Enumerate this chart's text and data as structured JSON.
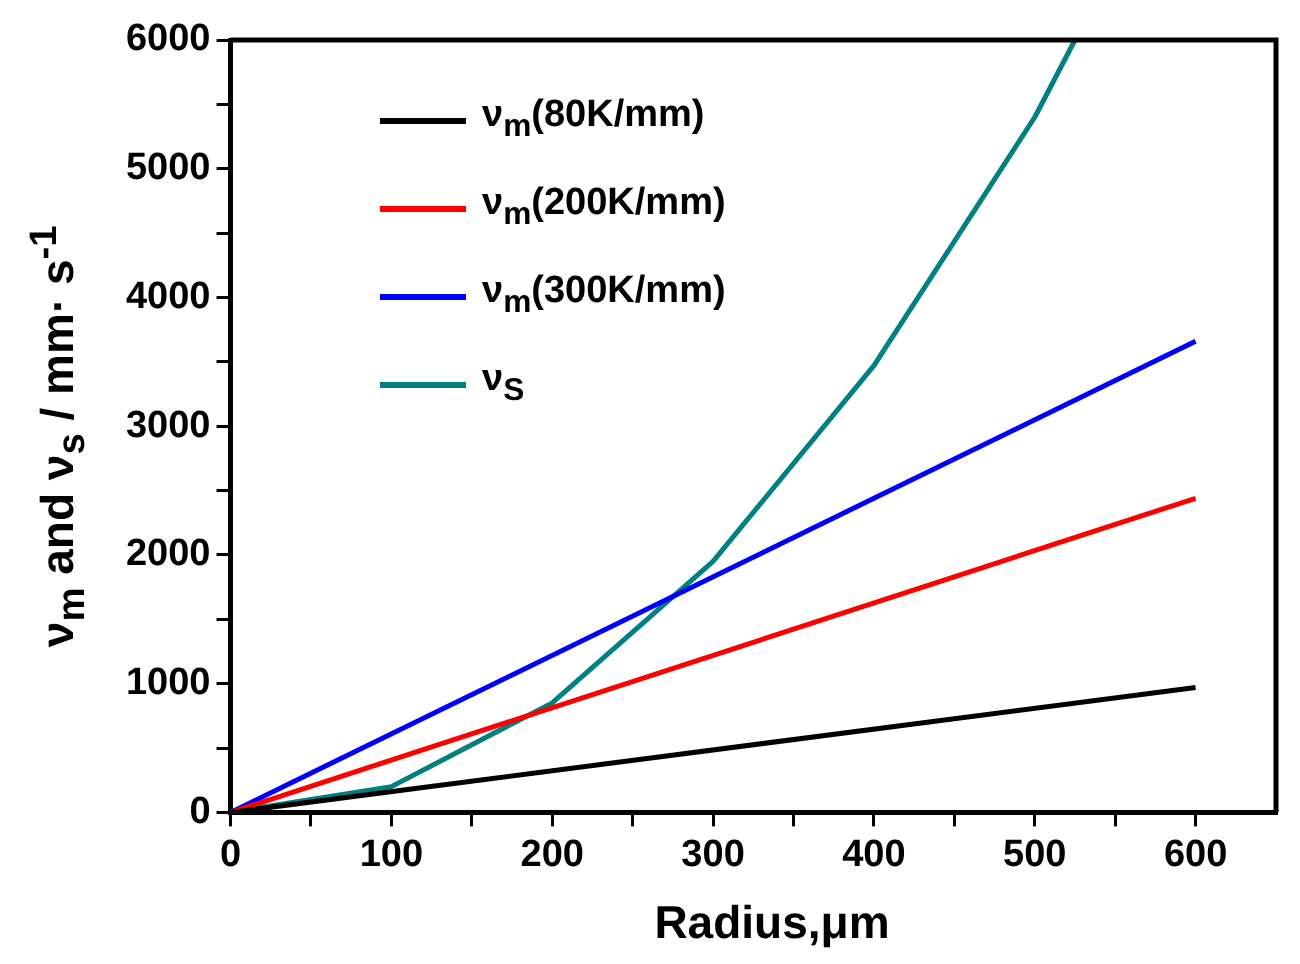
{
  "chart_data": {
    "type": "line",
    "xlabel": "Radius,μm",
    "ylabel": "ν$_{m}$ and ν$_{s}$ / mm· s$^{-1}$",
    "series": [
      {
        "name": "ν$_{m}$(80K/mm)",
        "color": "#000000",
        "x": [
          0,
          600
        ],
        "values": [
          0,
          970
        ]
      },
      {
        "name": "ν$_{m}$(200K/mm)",
        "color": "#ff0000",
        "x": [
          0,
          600
        ],
        "values": [
          0,
          2440
        ]
      },
      {
        "name": "ν$_{m}$(300K/mm)",
        "color": "#0000ff",
        "x": [
          0,
          600
        ],
        "values": [
          0,
          3660
        ]
      },
      {
        "name": "ν$_{S}$",
        "color": "#008080",
        "x": [
          0,
          100,
          200,
          300,
          400,
          500,
          525
        ],
        "values": [
          0,
          200,
          850,
          1950,
          3470,
          5400,
          6000
        ]
      }
    ],
    "xlim": [
      0,
      650
    ],
    "xticks": [
      0,
      {
        "value": 50,
        "label": null
      },
      100,
      {
        "value": 150,
        "label": null
      },
      200,
      {
        "value": 250,
        "label": null
      },
      300,
      {
        "value": 350,
        "label": null
      },
      400,
      {
        "value": 450,
        "label": null
      },
      500,
      {
        "value": 550,
        "label": null
      },
      600
    ],
    "ylim": [
      0,
      6000
    ],
    "yticks": [
      0,
      {
        "value": 500,
        "label": null
      },
      1000,
      {
        "value": 1500,
        "label": null
      },
      2000,
      {
        "value": 2500,
        "label": null
      },
      3000,
      {
        "value": 3500,
        "label": null
      },
      4000,
      {
        "value": 4500,
        "label": null
      },
      5000,
      {
        "value": 5500,
        "label": null
      },
      6000
    ],
    "legend": "top left",
    "marker": "none",
    "line_style": "solid",
    "grid": false
  }
}
